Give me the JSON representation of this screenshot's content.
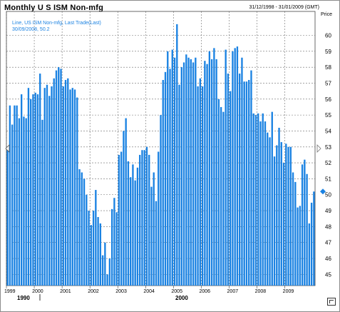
{
  "header": {
    "title": "Monthly U S ISM Non-mfg",
    "date_range": "31/12/1998 - 31/01/2009 (GMT)",
    "price_label": "Price"
  },
  "legend": {
    "line": "Line, US ISM Non-mfg, Last Trade(Last)",
    "last": "30/09/2008, 50.2"
  },
  "colors": {
    "bars": "#1a82e2",
    "grid": "#6e6e6e",
    "marker": "#1a82e2"
  },
  "chart_data": {
    "type": "bar",
    "ylim": [
      44.3,
      61.5
    ],
    "yticks": [
      45,
      46,
      47,
      48,
      49,
      50,
      51,
      52,
      53,
      54,
      55,
      56,
      57,
      58,
      59,
      60
    ],
    "x_labels": [
      "1999",
      "2000",
      "2001",
      "2002",
      "2003",
      "2004",
      "2005",
      "2006",
      "2007",
      "2008",
      "2009"
    ],
    "decade_labels": [
      "1990",
      "2000"
    ],
    "last_value": 50.2,
    "values": [
      53.0,
      55.6,
      54.4,
      55.6,
      55.6,
      54.8,
      56.3,
      54.9,
      54.8,
      56.7,
      56.0,
      56.3,
      56.4,
      56.3,
      57.6,
      54.7,
      56.7,
      56.9,
      56.2,
      56.8,
      57.3,
      57.8,
      58.0,
      57.9,
      56.8,
      57.2,
      57.3,
      56.6,
      56.7,
      56.6,
      56.1,
      51.6,
      51.4,
      51.0,
      50.0,
      49.0,
      48.1,
      49.0,
      50.3,
      48.6,
      48.2,
      46.2,
      47.0,
      45.0,
      46.0,
      49.1,
      49.8,
      48.9,
      52.5,
      52.7,
      54.0,
      54.8,
      52.1,
      51.1,
      51.9,
      50.9,
      51.7,
      52.5,
      52.8,
      52.8,
      53.0,
      52.5,
      50.5,
      51.4,
      49.6,
      52.7,
      55.0,
      57.2,
      57.7,
      59.0,
      57.9,
      59.1,
      58.6,
      60.7,
      56.9,
      58.0,
      58.3,
      58.8,
      58.6,
      58.5,
      58.3,
      58.6,
      56.8,
      57.3,
      56.8,
      58.4,
      58.2,
      59.0,
      58.5,
      59.2,
      58.5,
      56.0,
      55.5,
      55.2,
      59.1,
      57.6,
      56.5,
      59.0,
      59.2,
      59.3,
      57.6,
      58.6,
      57.1,
      57.1,
      57.2,
      57.8,
      55.1,
      55.0,
      55.1,
      54.6,
      55.1,
      54.6,
      53.9,
      53.6,
      55.2,
      52.4,
      53.1,
      54.2,
      53.3,
      52.0,
      53.2,
      53.0,
      53.0,
      51.4,
      50.8,
      49.2,
      49.3,
      51.9,
      52.2,
      51.3,
      48.2,
      49.5,
      50.2
    ]
  }
}
